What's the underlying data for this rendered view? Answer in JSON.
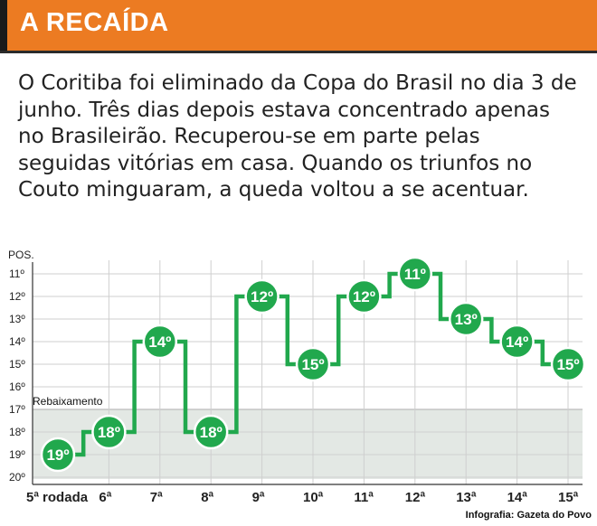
{
  "header": {
    "title": "A RECAÍDA"
  },
  "body_text": "O Coritiba foi eliminado da Copa do Brasil no dia 3 de junho. Três dias depois estava concentrado apenas no Brasileirão. Recuperou-se em parte pelas seguidas vitórias em casa. Quando os triunfos no Couto minguaram, a queda voltou a se acentuar.",
  "credit": "Infografia: Gazeta do Povo",
  "colors": {
    "header": "#ec7b22",
    "line": "#21a84d",
    "zone": "#e3e8e4",
    "grid": "#cfcfcf"
  },
  "chart_data": {
    "type": "line",
    "step": true,
    "ylabel": "POS.",
    "yticks": [
      "11º",
      "12º",
      "13º",
      "14º",
      "15º",
      "16º",
      "17º",
      "18º",
      "19º",
      "20º"
    ],
    "ylim": [
      11,
      20
    ],
    "y_inverted": true,
    "categories": [
      "5ª rodada",
      "6ª",
      "7ª",
      "8ª",
      "9ª",
      "10ª",
      "11ª",
      "12ª",
      "13ª",
      "14ª",
      "15ª"
    ],
    "values": [
      19,
      18,
      14,
      18,
      12,
      15,
      12,
      11,
      13,
      14,
      15
    ],
    "point_labels": [
      "19º",
      "18º",
      "14º",
      "18º",
      "12º",
      "15º",
      "12º",
      "11º",
      "13º",
      "14º",
      "15º"
    ],
    "zone": {
      "label": "Rebaixamento",
      "from": 17,
      "to": 20
    },
    "grid": true
  }
}
